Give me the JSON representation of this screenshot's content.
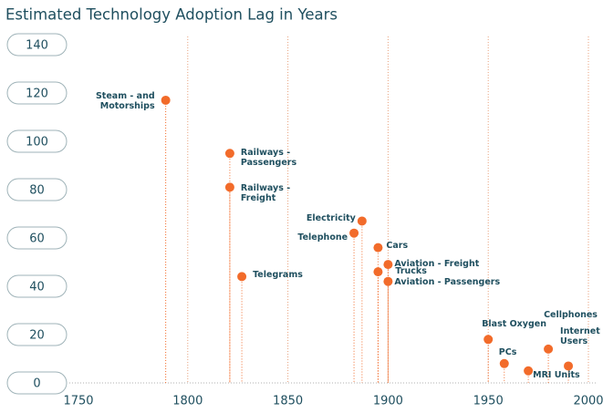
{
  "chart_data": {
    "type": "scatter",
    "title": "Estimated Technology Adoption Lag in Years",
    "labels": [
      "Steam - and Motorships",
      "Railways - Passengers",
      "Railways - Freight",
      "Telegrams",
      "Electricity",
      "Telephone",
      "Cars",
      "Aviation - Freight",
      "Trucks",
      "Aviation - Passengers",
      "Blast Oxygen",
      "PCs",
      "MRI Units",
      "Cellphones",
      "Internet Users"
    ],
    "x": [
      1789,
      1821,
      1821,
      1827,
      1887,
      1883,
      1895,
      1900,
      1895,
      1900,
      1950,
      1958,
      1970,
      1980,
      1990
    ],
    "values": [
      117,
      95,
      81,
      44,
      67,
      62,
      56,
      49,
      46,
      42,
      18,
      8,
      5,
      14,
      7
    ],
    "color": "#f26b2a",
    "xlim": [
      1750,
      2000
    ],
    "xticks": [
      1750,
      1800,
      1850,
      1900,
      1950,
      2000
    ],
    "ylim": [
      0,
      140
    ],
    "yticks": [
      0,
      20,
      40,
      60,
      80,
      100,
      120,
      140
    ],
    "grid": true
  }
}
